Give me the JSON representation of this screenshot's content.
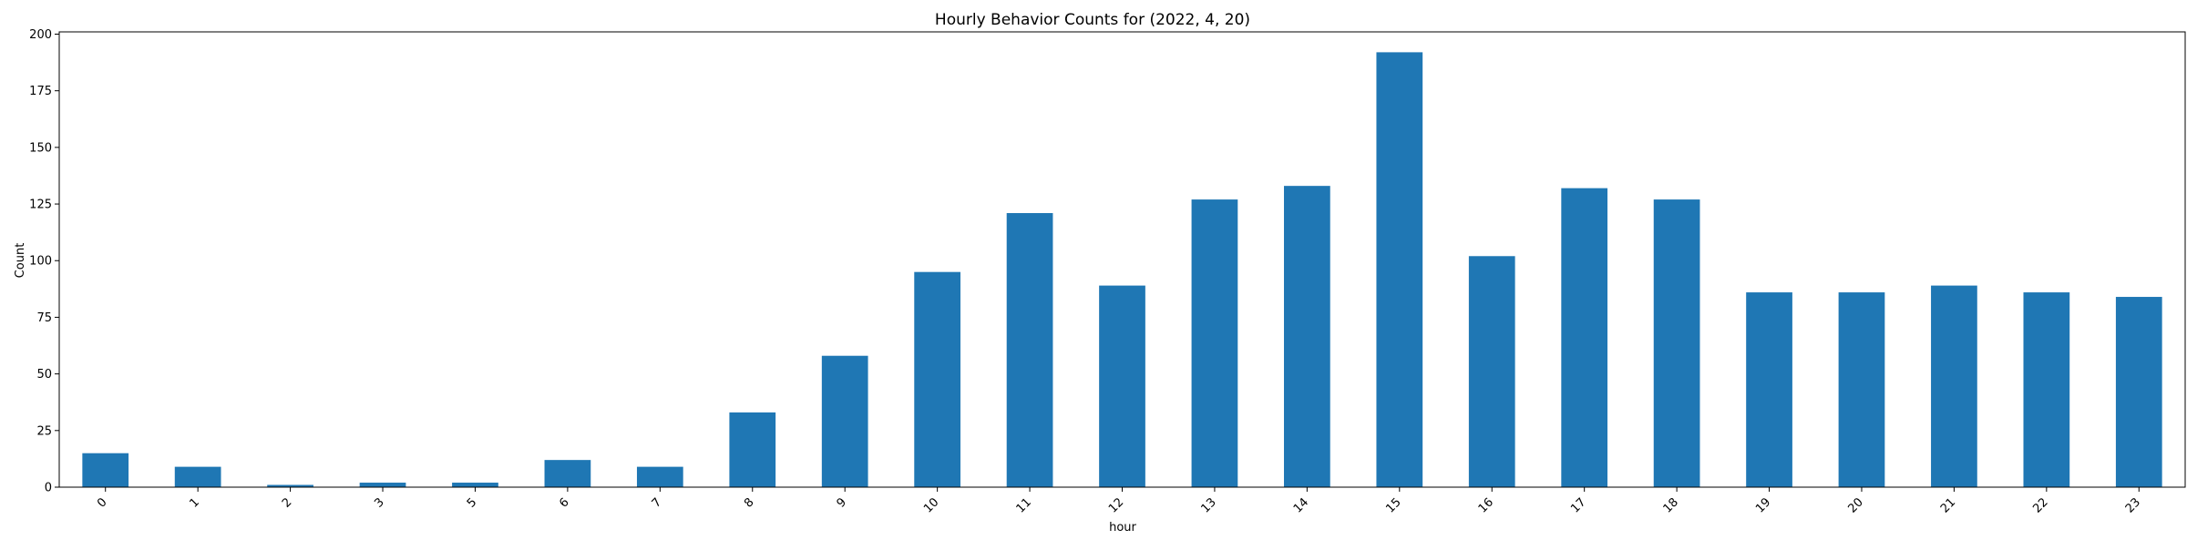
{
  "chart_data": {
    "type": "bar",
    "title": "Hourly Behavior Counts for (2022, 4, 20)",
    "xlabel": "hour",
    "ylabel": "Count",
    "categories": [
      "0",
      "1",
      "2",
      "3",
      "5",
      "6",
      "7",
      "8",
      "9",
      "10",
      "11",
      "12",
      "13",
      "14",
      "15",
      "16",
      "17",
      "18",
      "19",
      "20",
      "21",
      "22",
      "23"
    ],
    "values": [
      15,
      9,
      1,
      2,
      2,
      12,
      9,
      33,
      58,
      95,
      121,
      89,
      127,
      133,
      192,
      102,
      132,
      127,
      86,
      86,
      89,
      86,
      84
    ],
    "ylim": [
      0,
      201
    ],
    "yticks": [
      "0",
      "25",
      "50",
      "75",
      "100",
      "125",
      "150",
      "175",
      "200"
    ],
    "bar_color": "#1f77b4",
    "grid": false,
    "x_tick_rotation": 45
  }
}
